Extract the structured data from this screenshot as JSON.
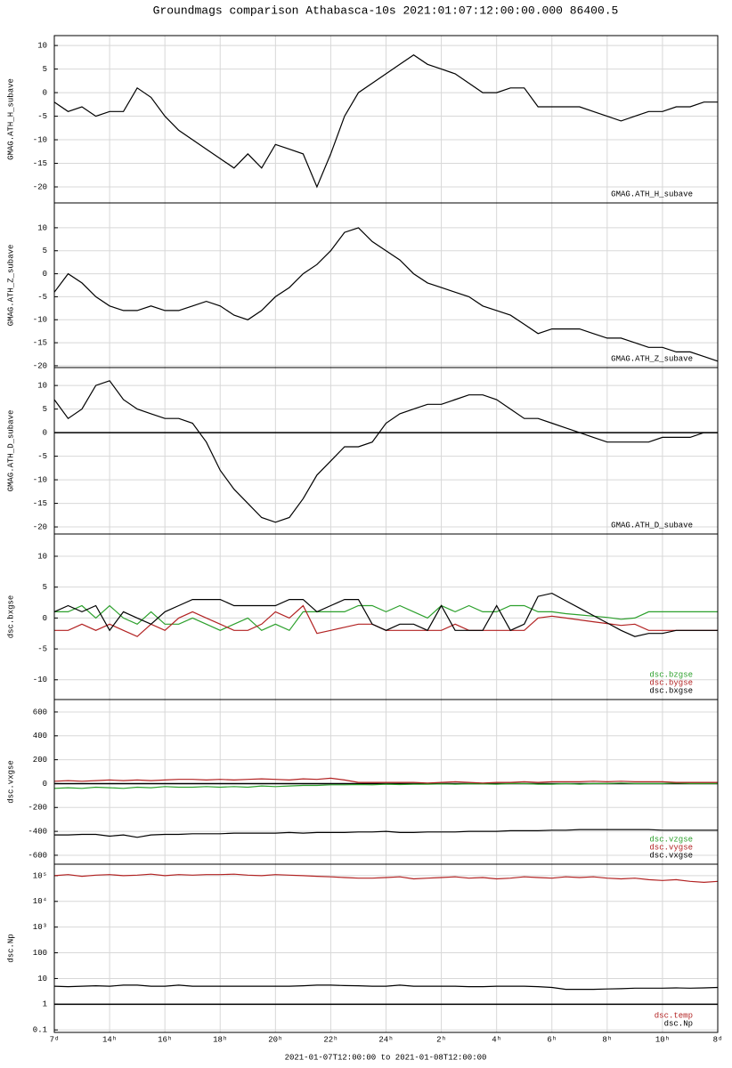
{
  "title": "Groundmags comparison Athabasca-10s 2021:01:07:12:00:00.000 86400.5",
  "x_label": "2021-01-07T12:00:00 to 2021-01-08T12:00:00",
  "chart_data": [
    {
      "type": "line",
      "y_label": "GMAG.ATH_H_subave",
      "xlim": [
        12,
        36
      ],
      "ylim": [
        -23.4,
        12.1
      ],
      "yticks": [
        10,
        5,
        0,
        -5,
        -10,
        -15,
        -20
      ],
      "grid": true,
      "x": [
        12,
        12.5,
        13,
        13.5,
        14,
        14.5,
        15,
        15.5,
        16,
        16.5,
        17,
        17.5,
        18,
        18.5,
        19,
        19.5,
        20,
        20.5,
        21,
        21.5,
        22,
        22.5,
        23,
        23.5,
        24,
        24.5,
        25,
        25.5,
        26,
        26.5,
        27,
        27.5,
        28,
        28.5,
        29,
        29.5,
        30,
        30.5,
        31,
        31.5,
        32,
        32.5,
        33,
        33.5,
        34,
        34.5,
        35,
        35.5,
        36
      ],
      "series": [
        {
          "name": "GMAG.ATH_H_subave",
          "color": "#000000",
          "values": [
            -2,
            -4,
            -3,
            -5,
            -4,
            -4,
            1,
            -1,
            -5,
            -8,
            -10,
            -12,
            -14,
            -16,
            -13,
            -16,
            -11,
            -12,
            -13,
            -20,
            -13,
            -5,
            0,
            2,
            4,
            6,
            8,
            6,
            5,
            4,
            2,
            0,
            0,
            1,
            1,
            -3,
            -3,
            -3,
            -3,
            -4,
            -5,
            -6,
            -5,
            -4,
            -4,
            -3,
            -3,
            -2,
            -2
          ]
        }
      ]
    },
    {
      "type": "line",
      "y_label": "GMAG.ATH_Z_subave",
      "xlim": [
        12,
        36
      ],
      "ylim": [
        -20.4,
        15.4
      ],
      "yticks": [
        10,
        5,
        0,
        -5,
        -10,
        -15,
        -20
      ],
      "grid": true,
      "x": [
        12,
        12.5,
        13,
        13.5,
        14,
        14.5,
        15,
        15.5,
        16,
        16.5,
        17,
        17.5,
        18,
        18.5,
        19,
        19.5,
        20,
        20.5,
        21,
        21.5,
        22,
        22.5,
        23,
        23.5,
        24,
        24.5,
        25,
        25.5,
        26,
        26.5,
        27,
        27.5,
        28,
        28.5,
        29,
        29.5,
        30,
        30.5,
        31,
        31.5,
        32,
        32.5,
        33,
        33.5,
        34,
        34.5,
        35,
        35.5,
        36
      ],
      "series": [
        {
          "name": "GMAG.ATH_Z_subave",
          "color": "#000000",
          "values": [
            -4,
            0,
            -2,
            -5,
            -7,
            -8,
            -8,
            -7,
            -8,
            -8,
            -7,
            -6,
            -7,
            -9,
            -10,
            -8,
            -5,
            -3,
            0,
            2,
            5,
            9,
            10,
            7,
            5,
            3,
            0,
            -2,
            -3,
            -4,
            -5,
            -7,
            -8,
            -9,
            -11,
            -13,
            -12,
            -12,
            -12,
            -13,
            -14,
            -14,
            -15,
            -16,
            -16,
            -17,
            -17,
            -18,
            -19
          ]
        }
      ]
    },
    {
      "type": "line",
      "y_label": "GMAG.ATH_D_subave",
      "xlim": [
        12,
        36
      ],
      "ylim": [
        -21.5,
        13.8
      ],
      "yticks": [
        10,
        5,
        0,
        -5,
        -10,
        -15,
        -20
      ],
      "grid": true,
      "baseline": true,
      "x": [
        12,
        12.5,
        13,
        13.5,
        14,
        14.5,
        15,
        15.5,
        16,
        16.5,
        17,
        17.5,
        18,
        18.5,
        19,
        19.5,
        20,
        20.5,
        21,
        21.5,
        22,
        22.5,
        23,
        23.5,
        24,
        24.5,
        25,
        25.5,
        26,
        26.5,
        27,
        27.5,
        28,
        28.5,
        29,
        29.5,
        30,
        30.5,
        31,
        31.5,
        32,
        32.5,
        33,
        33.5,
        34,
        34.5,
        35,
        35.5,
        36
      ],
      "series": [
        {
          "name": "GMAG.ATH_D_subave",
          "color": "#000000",
          "values": [
            7,
            3,
            5,
            10,
            11,
            7,
            5,
            4,
            3,
            3,
            2,
            -2,
            -8,
            -12,
            -15,
            -18,
            -19,
            -18,
            -14,
            -9,
            -6,
            -3,
            -3,
            -2,
            2,
            4,
            5,
            6,
            6,
            7,
            8,
            8,
            7,
            5,
            3,
            3,
            2,
            1,
            0,
            -1,
            -2,
            -2,
            -2,
            -2,
            -1,
            -1,
            -1,
            0,
            0
          ]
        }
      ]
    },
    {
      "type": "line",
      "y_label": "dsc.bxgse",
      "xlim": [
        12,
        36
      ],
      "ylim": [
        -13.2,
        13.6
      ],
      "yticks": [
        10,
        5,
        0,
        -5,
        -10
      ],
      "grid": true,
      "x": [
        12,
        12.5,
        13,
        13.5,
        14,
        14.5,
        15,
        15.5,
        16,
        16.5,
        17,
        17.5,
        18,
        18.5,
        19,
        19.5,
        20,
        20.5,
        21,
        21.5,
        22,
        22.5,
        23,
        23.5,
        24,
        24.5,
        25,
        25.5,
        26,
        26.5,
        27,
        27.5,
        28,
        28.5,
        29,
        29.5,
        30,
        30.5,
        31,
        31.5,
        32,
        32.5,
        33,
        33.5,
        34,
        34.5,
        35,
        35.5,
        36
      ],
      "series": [
        {
          "name": "dsc.bzgse",
          "color": "#2ca02c",
          "values": [
            1,
            1,
            2,
            0,
            2,
            0,
            -1,
            1,
            -1,
            -1,
            0,
            -1,
            -2,
            -1,
            0,
            -2,
            -1,
            -2,
            1,
            1,
            1,
            1,
            2,
            2,
            1,
            2,
            1,
            0,
            2,
            1,
            2,
            1,
            1,
            2,
            2,
            1,
            1,
            0.7,
            0.5,
            0.3,
            0.1,
            -0.2,
            0,
            1,
            1,
            1,
            1,
            1,
            1
          ]
        },
        {
          "name": "dsc.bygse",
          "color": "#b22222",
          "values": [
            -2,
            -2,
            -1,
            -2,
            -1,
            -2,
            -3,
            -1,
            -2,
            0,
            1,
            0,
            -1,
            -2,
            -2,
            -1,
            1,
            0,
            2,
            -2.5,
            -2,
            -1.5,
            -1,
            -1,
            -2,
            -2,
            -2,
            -2,
            -2,
            -1,
            -2,
            -2,
            -2,
            -2,
            -2,
            0,
            0.3,
            0,
            -0.3,
            -0.6,
            -0.9,
            -1.2,
            -1,
            -2,
            -2,
            -2,
            -2,
            -2,
            -2
          ]
        },
        {
          "name": "dsc.bxgse",
          "color": "#000000",
          "values": [
            1,
            2,
            1,
            2,
            -2,
            1,
            0,
            -1,
            1,
            2,
            3,
            3,
            3,
            2,
            2,
            2,
            2,
            3,
            3,
            1,
            2,
            3,
            3,
            -1,
            -2,
            -1,
            -1,
            -2,
            2,
            -2,
            -2,
            -2,
            2,
            -2,
            -1,
            3.5,
            4,
            2.8,
            1.6,
            0.4,
            -0.8,
            -2,
            -3,
            -2.5,
            -2.5,
            -2,
            -2,
            -2,
            -2
          ]
        }
      ]
    },
    {
      "type": "line",
      "y_label": "dsc.vxgse",
      "xlim": [
        12,
        36
      ],
      "ylim": [
        -675,
        704
      ],
      "yticks": [
        600,
        400,
        200,
        0,
        -200,
        -400,
        -600
      ],
      "grid": true,
      "baseline": true,
      "x": [
        12,
        12.5,
        13,
        13.5,
        14,
        14.5,
        15,
        15.5,
        16,
        16.5,
        17,
        17.5,
        18,
        18.5,
        19,
        19.5,
        20,
        20.5,
        21,
        21.5,
        22,
        22.5,
        23,
        23.5,
        24,
        24.5,
        25,
        25.5,
        26,
        26.5,
        27,
        27.5,
        28,
        28.5,
        29,
        29.5,
        30,
        30.5,
        31,
        31.5,
        32,
        32.5,
        33,
        33.5,
        34,
        34.5,
        35,
        35.5,
        36
      ],
      "series": [
        {
          "name": "dsc.vzgse",
          "color": "#2ca02c",
          "values": [
            -40,
            -35,
            -40,
            -30,
            -35,
            -40,
            -30,
            -35,
            -25,
            -30,
            -30,
            -25,
            -30,
            -25,
            -30,
            -20,
            -25,
            -20,
            -15,
            -15,
            -10,
            -10,
            -8,
            -10,
            -5,
            -8,
            -5,
            -5,
            -3,
            -5,
            -2,
            -3,
            -5,
            0,
            0,
            -5,
            -5,
            0,
            -5,
            0,
            0,
            5,
            0,
            0,
            0,
            5,
            0,
            0,
            0
          ]
        },
        {
          "name": "dsc.vygse",
          "color": "#b22222",
          "values": [
            20,
            25,
            20,
            25,
            30,
            25,
            30,
            25,
            30,
            35,
            35,
            30,
            35,
            30,
            35,
            40,
            35,
            30,
            40,
            35,
            45,
            30,
            10,
            10,
            10,
            10,
            10,
            5,
            10,
            15,
            10,
            5,
            10,
            10,
            15,
            10,
            15,
            15,
            15,
            20,
            15,
            20,
            15,
            15,
            15,
            10,
            10,
            10,
            10
          ]
        },
        {
          "name": "dsc.vxgse",
          "color": "#000000",
          "values": [
            -430,
            -430,
            -425,
            -425,
            -440,
            -430,
            -450,
            -430,
            -425,
            -425,
            -420,
            -420,
            -420,
            -415,
            -415,
            -415,
            -415,
            -410,
            -415,
            -410,
            -410,
            -410,
            -405,
            -405,
            -400,
            -410,
            -410,
            -405,
            -405,
            -405,
            -400,
            -400,
            -400,
            -395,
            -395,
            -395,
            -390,
            -390,
            -385,
            -385,
            -385,
            -385,
            -385,
            -385,
            -390,
            -390,
            -390,
            -390,
            -390
          ]
        }
      ]
    },
    {
      "type": "line",
      "y_label": "dsc.Np",
      "log": true,
      "xlim": [
        12,
        36
      ],
      "ylim": [
        0.08,
        280000
      ],
      "grid": true,
      "baseline": true,
      "yticks": [
        0.1,
        1,
        10,
        100,
        {
          "value": 1000,
          "label": "10³"
        },
        {
          "value": 10000,
          "label": "10⁴"
        },
        {
          "value": 100000,
          "label": "10⁵"
        }
      ],
      "xticks": [
        {
          "value": 12,
          "label": "7ᵈ"
        },
        {
          "value": 14,
          "label": "14ʰ"
        },
        {
          "value": 16,
          "label": "16ʰ"
        },
        {
          "value": 18,
          "label": "18ʰ"
        },
        {
          "value": 20,
          "label": "20ʰ"
        },
        {
          "value": 22,
          "label": "22ʰ"
        },
        {
          "value": 24,
          "label": "24ʰ"
        },
        {
          "value": 26,
          "label": "2ʰ"
        },
        {
          "value": 28,
          "label": "4ʰ"
        },
        {
          "value": 30,
          "label": "6ʰ"
        },
        {
          "value": 32,
          "label": "8ʰ"
        },
        {
          "value": 34,
          "label": "10ʰ"
        },
        {
          "value": 36,
          "label": "8ᵈ"
        }
      ],
      "x": [
        12,
        12.5,
        13,
        13.5,
        14,
        14.5,
        15,
        15.5,
        16,
        16.5,
        17,
        17.5,
        18,
        18.5,
        19,
        19.5,
        20,
        20.5,
        21,
        21.5,
        22,
        22.5,
        23,
        23.5,
        24,
        24.5,
        25,
        25.5,
        26,
        26.5,
        27,
        27.5,
        28,
        28.5,
        29,
        29.5,
        30,
        30.5,
        31,
        31.5,
        32,
        32.5,
        33,
        33.5,
        34,
        34.5,
        35,
        35.5,
        36
      ],
      "series": [
        {
          "name": "dsc.temp",
          "color": "#b22222",
          "values": [
            100000,
            110000,
            95000,
            105000,
            110000,
            100000,
            105000,
            115000,
            100000,
            110000,
            105000,
            110000,
            110000,
            115000,
            105000,
            100000,
            110000,
            105000,
            100000,
            95000,
            90000,
            85000,
            80000,
            80000,
            85000,
            90000,
            75000,
            80000,
            85000,
            90000,
            80000,
            85000,
            75000,
            80000,
            90000,
            85000,
            80000,
            90000,
            85000,
            90000,
            80000,
            75000,
            80000,
            70000,
            65000,
            70000,
            60000,
            55000,
            60000
          ]
        },
        {
          "name": "dsc.Np",
          "color": "#000000",
          "values": [
            5,
            4.8,
            5,
            5.2,
            5,
            5.5,
            5.5,
            5,
            5,
            5.5,
            5,
            5,
            5,
            5,
            5,
            5,
            5,
            5,
            5.2,
            5.5,
            5.5,
            5.3,
            5.2,
            5,
            5,
            5.5,
            5,
            5,
            5,
            5,
            4.8,
            4.8,
            5,
            5,
            5,
            4.8,
            4.5,
            3.8,
            3.8,
            3.8,
            3.9,
            4,
            4.2,
            4.2,
            4.2,
            4.3,
            4.2,
            4.3,
            4.5
          ]
        }
      ]
    }
  ]
}
